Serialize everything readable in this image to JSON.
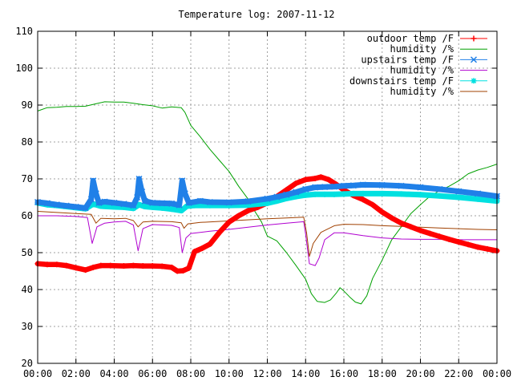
{
  "chart_data": {
    "type": "line",
    "title": "Temperature log: 2007-11-12",
    "xlabel": "",
    "ylabel": "",
    "x_ticks": [
      "00:00",
      "02:00",
      "04:00",
      "06:00",
      "08:00",
      "10:00",
      "12:00",
      "14:00",
      "16:00",
      "18:00",
      "20:00",
      "22:00",
      "00:00"
    ],
    "x_tick_hours": [
      0,
      2,
      4,
      6,
      8,
      10,
      12,
      14,
      16,
      18,
      20,
      22,
      24
    ],
    "xlim": [
      0,
      24
    ],
    "ylim": [
      20,
      110
    ],
    "y_ticks": [
      20,
      30,
      40,
      50,
      60,
      70,
      80,
      90,
      100,
      110
    ],
    "grid": true,
    "legend_position": "top-right",
    "series": [
      {
        "name": "outdoor temp /F",
        "color": "#ff0000",
        "marker": "plus",
        "x": [
          0,
          0.5,
          1,
          1.5,
          2,
          2.5,
          2.9,
          3.3,
          3.8,
          4.5,
          5,
          5.5,
          6,
          6.5,
          7,
          7.3,
          7.6,
          7.9,
          8.2,
          8.6,
          9,
          9.5,
          10,
          10.5,
          11,
          11.5,
          12,
          12.5,
          13,
          13.5,
          14,
          14.5,
          14.8,
          15.2,
          15.6,
          16,
          16.5,
          17,
          17.5,
          18,
          18.5,
          19,
          19.5,
          20,
          20.5,
          21,
          21.5,
          22,
          22.5,
          23,
          23.5,
          24
        ],
        "y": [
          47,
          46.8,
          46.8,
          46.5,
          45.9,
          45.3,
          46,
          46.5,
          46.5,
          46.4,
          46.5,
          46.4,
          46.4,
          46.3,
          46,
          45,
          45.1,
          45.8,
          50.3,
          51.2,
          52.3,
          55.5,
          58.3,
          60,
          61.4,
          62.3,
          63.5,
          65.2,
          67,
          68.8,
          69.8,
          70.1,
          70.5,
          69.8,
          68.5,
          67,
          65.5,
          64.4,
          63,
          61,
          59.4,
          58,
          57,
          56,
          55.2,
          54.4,
          53.6,
          52.9,
          52.2,
          51.5,
          51,
          50.5
        ]
      },
      {
        "name": "humidity /%",
        "color": "#00a000",
        "marker": "none",
        "x": [
          0,
          0.5,
          1,
          1.5,
          2,
          2.5,
          3,
          3.5,
          4,
          4.5,
          5,
          5.5,
          6,
          6.5,
          7,
          7.5,
          7.7,
          8,
          8.5,
          9,
          9.5,
          10,
          10.5,
          11,
          11.3,
          11.7,
          12,
          12.5,
          13,
          13.5,
          14,
          14.3,
          14.6,
          15,
          15.3,
          15.6,
          15.8,
          16,
          16.3,
          16.6,
          16.9,
          17.2,
          17.5,
          18,
          18.5,
          19,
          19.5,
          20,
          20.5,
          21,
          21.5,
          22,
          22.5,
          23,
          23.5,
          24
        ],
        "y": [
          88.4,
          89.3,
          89.4,
          89.6,
          89.6,
          89.7,
          90.3,
          90.9,
          90.8,
          90.8,
          90.5,
          90.1,
          89.8,
          89.2,
          89.5,
          89.3,
          88,
          84.5,
          81.4,
          78,
          75,
          72,
          68,
          64.5,
          61.6,
          58.3,
          54.5,
          53.2,
          50,
          46.5,
          42.8,
          38.9,
          36.8,
          36.5,
          37.2,
          39,
          40.5,
          39.6,
          38,
          36.6,
          36.1,
          38.3,
          43,
          48,
          53.5,
          57,
          60.6,
          63,
          65.3,
          66.8,
          68,
          69.5,
          71.4,
          72.4,
          73.1,
          74
        ]
      },
      {
        "name": "upstairs temp /F",
        "color": "#2080e8",
        "marker": "x",
        "x": [
          0,
          0.5,
          1,
          1.5,
          2,
          2.5,
          2.8,
          2.9,
          3.05,
          3.2,
          3.5,
          4,
          4.5,
          5,
          5.2,
          5.3,
          5.45,
          5.6,
          6,
          6.5,
          7,
          7.4,
          7.55,
          7.7,
          7.9,
          8.5,
          9,
          10,
          11,
          12,
          12.5,
          13,
          13.5,
          14,
          14.5,
          15,
          15.5,
          16,
          16.5,
          17,
          18,
          19,
          20,
          21,
          22,
          23,
          24
        ],
        "y": [
          63.7,
          63.4,
          63,
          62.7,
          62.4,
          62.1,
          64.5,
          69.5,
          66,
          63.5,
          63.8,
          63.5,
          63.2,
          62.8,
          65,
          70,
          66.5,
          64,
          63.5,
          63.4,
          63.3,
          62.9,
          69.5,
          66,
          63.5,
          64,
          63.7,
          63.6,
          63.9,
          64.6,
          65.1,
          65.7,
          66.4,
          67.2,
          67.7,
          67.8,
          67.9,
          68.1,
          68.2,
          68.4,
          68.3,
          68.1,
          67.7,
          67.2,
          66.6,
          66,
          65.3
        ]
      },
      {
        "name": "humidity /%",
        "color": "#b000d0",
        "marker": "none",
        "x": [
          0,
          1,
          2,
          2.6,
          2.85,
          3.1,
          3.5,
          4,
          4.6,
          5,
          5.25,
          5.5,
          6,
          7,
          7.4,
          7.55,
          7.75,
          8,
          9,
          10,
          11,
          12,
          13,
          13.9,
          14,
          14.2,
          14.5,
          14.7,
          15,
          15.5,
          16,
          17,
          18,
          19,
          20,
          21,
          22,
          23,
          24
        ],
        "y": [
          60,
          60,
          59.8,
          59.5,
          52.5,
          57,
          58,
          58.3,
          58.5,
          57.5,
          50.5,
          56.5,
          57.6,
          57.4,
          56.8,
          50,
          54,
          55.2,
          55.8,
          56.3,
          56.9,
          57.5,
          58,
          58.4,
          55,
          47,
          46.5,
          48.5,
          53.5,
          55.4,
          55.4,
          54.6,
          54,
          53.7,
          53.6,
          53.6,
          53.5,
          53.5,
          53.5
        ]
      },
      {
        "name": "downstairs temp /F",
        "color": "#00e0e0",
        "marker": "star",
        "x": [
          0,
          0.5,
          1,
          1.5,
          2,
          2.5,
          2.9,
          3.3,
          4,
          4.5,
          5,
          5.3,
          5.6,
          6,
          6.5,
          7,
          7.5,
          7.8,
          8.2,
          9,
          10,
          11,
          12,
          12.5,
          13,
          13.5,
          14,
          14.5,
          15,
          15.5,
          16,
          16.5,
          17,
          18,
          19,
          20,
          21,
          22,
          23,
          24
        ],
        "y": [
          63.5,
          63,
          62.8,
          62.5,
          62.2,
          61.9,
          63.2,
          62.6,
          62.4,
          62.3,
          62,
          63,
          62.5,
          62.3,
          62.1,
          61.8,
          61.4,
          62.6,
          62.8,
          62.8,
          62.8,
          62.9,
          63.4,
          64,
          64.7,
          65.2,
          65.6,
          65.8,
          65.8,
          65.8,
          65.9,
          66,
          66,
          66,
          65.9,
          65.7,
          65.4,
          65,
          64.5,
          64
        ]
      },
      {
        "name": "humidity /%",
        "color": "#a04000",
        "marker": "none",
        "x": [
          0,
          1,
          2,
          2.8,
          3.05,
          3.3,
          4,
          4.6,
          5,
          5.25,
          5.5,
          6,
          7,
          7.5,
          7.65,
          7.85,
          8.5,
          10,
          12,
          13,
          13.9,
          14.05,
          14.2,
          14.4,
          14.8,
          15.5,
          16,
          17,
          18,
          19,
          20,
          21,
          22,
          23,
          24
        ],
        "y": [
          61.2,
          60.9,
          60.6,
          60.4,
          58,
          59.3,
          59.2,
          59.3,
          58.7,
          57,
          58.3,
          58.5,
          58.4,
          58.1,
          56.6,
          57.8,
          58.2,
          58.6,
          59.2,
          59.4,
          59.6,
          55.5,
          49,
          52.5,
          55.5,
          57.3,
          57.7,
          57.6,
          57.3,
          57.1,
          56.9,
          56.7,
          56.5,
          56.3,
          56.2
        ]
      }
    ]
  }
}
